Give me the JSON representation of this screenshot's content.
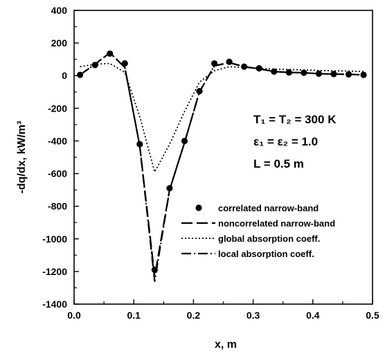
{
  "chart_data": {
    "type": "line",
    "xlabel": "x, m",
    "ylabel": "-dq/dx, kW/m³",
    "xlim": [
      0.0,
      0.5
    ],
    "ylim": [
      -1400,
      400
    ],
    "x_ticks": [
      "0.0",
      "0.1",
      "0.2",
      "0.3",
      "0.4",
      "0.5"
    ],
    "y_ticks": [
      "400",
      "200",
      "0",
      "-200",
      "-400",
      "-600",
      "-800",
      "-1000",
      "-1200",
      "-1400"
    ],
    "grid": false,
    "legend_position": "lower-right",
    "annotations": [
      "T₁ = T₂ = 300 K",
      "ε₁ = ε₂ = 1.0",
      "L = 0.5 m"
    ],
    "series": [
      {
        "name": "correlated narrow-band",
        "style": "markers",
        "x": [
          0.01,
          0.035,
          0.06,
          0.085,
          0.11,
          0.135,
          0.16,
          0.185,
          0.21,
          0.235,
          0.26,
          0.285,
          0.31,
          0.335,
          0.36,
          0.385,
          0.41,
          0.435,
          0.46,
          0.485
        ],
        "values": [
          5,
          65,
          135,
          75,
          -420,
          -1190,
          -690,
          -400,
          -95,
          75,
          85,
          55,
          45,
          25,
          20,
          18,
          12,
          10,
          8,
          5
        ]
      },
      {
        "name": "noncorrelated narrow-band",
        "style": "dashed",
        "x": [
          0.01,
          0.035,
          0.06,
          0.085,
          0.11,
          0.135,
          0.16,
          0.185,
          0.21,
          0.235,
          0.26,
          0.285,
          0.31,
          0.335,
          0.36,
          0.385,
          0.41,
          0.435,
          0.46,
          0.485
        ],
        "values": [
          5,
          70,
          140,
          50,
          -430,
          -1230,
          -700,
          -410,
          -100,
          60,
          80,
          55,
          42,
          25,
          20,
          18,
          12,
          10,
          8,
          5
        ]
      },
      {
        "name": "global absorption coeff.",
        "style": "dotted",
        "x": [
          0.01,
          0.035,
          0.06,
          0.085,
          0.11,
          0.135,
          0.16,
          0.185,
          0.21,
          0.235,
          0.26,
          0.285,
          0.31,
          0.335,
          0.36,
          0.385,
          0.41,
          0.435,
          0.46,
          0.485
        ],
        "values": [
          55,
          70,
          75,
          20,
          -250,
          -590,
          -420,
          -220,
          -40,
          30,
          55,
          50,
          45,
          40,
          38,
          35,
          32,
          30,
          28,
          25
        ]
      },
      {
        "name": "local absorption coeff.",
        "style": "dashdot",
        "x": [
          0.01,
          0.035,
          0.06,
          0.085,
          0.11,
          0.135,
          0.16,
          0.185,
          0.21,
          0.235,
          0.26,
          0.285,
          0.31,
          0.335,
          0.36,
          0.385,
          0.41,
          0.435,
          0.46,
          0.485
        ],
        "values": [
          5,
          70,
          140,
          50,
          -430,
          -1260,
          -700,
          -410,
          -100,
          60,
          80,
          55,
          42,
          25,
          20,
          18,
          12,
          10,
          8,
          5
        ]
      }
    ]
  }
}
